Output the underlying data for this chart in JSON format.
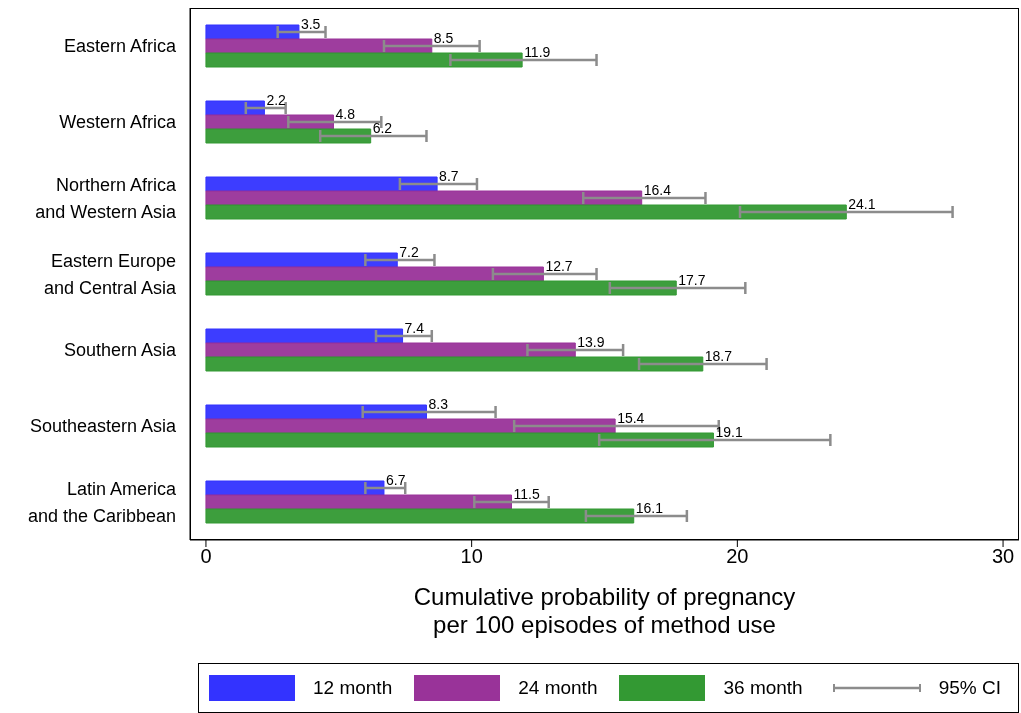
{
  "chart_data": {
    "type": "bar",
    "orientation": "horizontal",
    "xlabel": "Cumulative probability of pregnancy\nper 100 episodes of method use",
    "categories": [
      "Eastern Africa",
      "Western Africa",
      "Northern Africa\nand Western Asia",
      "Eastern Europe\nand Central Asia",
      "Southern Asia",
      "Southeastern Asia",
      "Latin America\nand the Caribbean"
    ],
    "series": [
      {
        "name": "12 month",
        "color": "#3333ff",
        "values": [
          3.5,
          2.2,
          8.7,
          7.2,
          7.4,
          8.3,
          6.7
        ],
        "errors": [
          [
            2.7,
            4.5
          ],
          [
            1.5,
            3.0
          ],
          [
            7.3,
            10.2
          ],
          [
            6.0,
            8.6
          ],
          [
            6.4,
            8.5
          ],
          [
            5.9,
            10.9
          ],
          [
            6.0,
            7.5
          ]
        ]
      },
      {
        "name": "24 month",
        "color": "#993399",
        "values": [
          8.5,
          4.8,
          16.4,
          12.7,
          13.9,
          15.4,
          11.5
        ],
        "errors": [
          [
            6.7,
            10.3
          ],
          [
            3.1,
            6.6
          ],
          [
            14.2,
            18.8
          ],
          [
            10.8,
            14.7
          ],
          [
            12.1,
            15.7
          ],
          [
            11.6,
            19.3
          ],
          [
            10.1,
            12.9
          ]
        ]
      },
      {
        "name": "36 month",
        "color": "#339933",
        "values": [
          11.9,
          6.2,
          24.1,
          17.7,
          18.7,
          19.1,
          16.1
        ],
        "errors": [
          [
            9.2,
            14.7
          ],
          [
            4.3,
            8.3
          ],
          [
            20.1,
            28.1
          ],
          [
            15.2,
            20.3
          ],
          [
            16.3,
            21.1
          ],
          [
            14.8,
            23.5
          ],
          [
            14.3,
            18.1
          ]
        ]
      }
    ],
    "xlim": [
      -0.6,
      30.6
    ],
    "xticks": [
      0,
      10,
      20,
      30
    ],
    "data_labels": true,
    "grid": false,
    "legend": "bottom",
    "annotations": [
      "95% CI"
    ]
  }
}
